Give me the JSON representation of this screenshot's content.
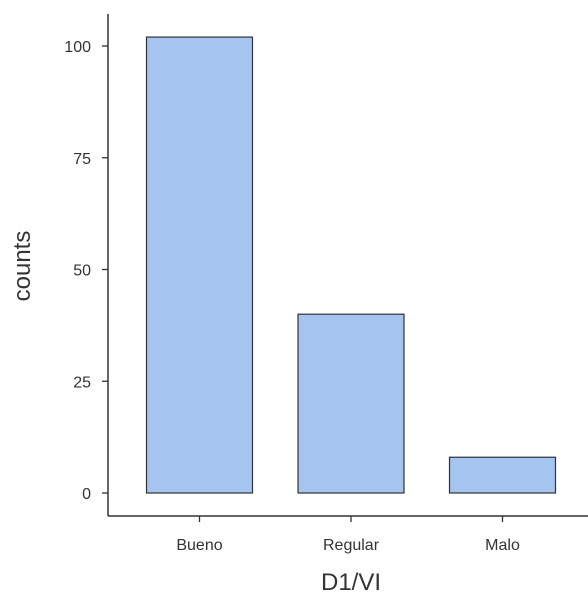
{
  "chart_data": {
    "type": "bar",
    "categories": [
      "Bueno",
      "Regular",
      "Malo"
    ],
    "values": [
      102,
      40,
      8
    ],
    "xlabel": "D1/VI",
    "ylabel": "counts",
    "ylim": [
      0,
      100
    ],
    "yticks": [
      0,
      25,
      50,
      75,
      100
    ],
    "bar_color": "#a6c4f0",
    "bar_stroke": "#333333",
    "axis_color": "#333333",
    "grid": false,
    "legend": "none"
  }
}
